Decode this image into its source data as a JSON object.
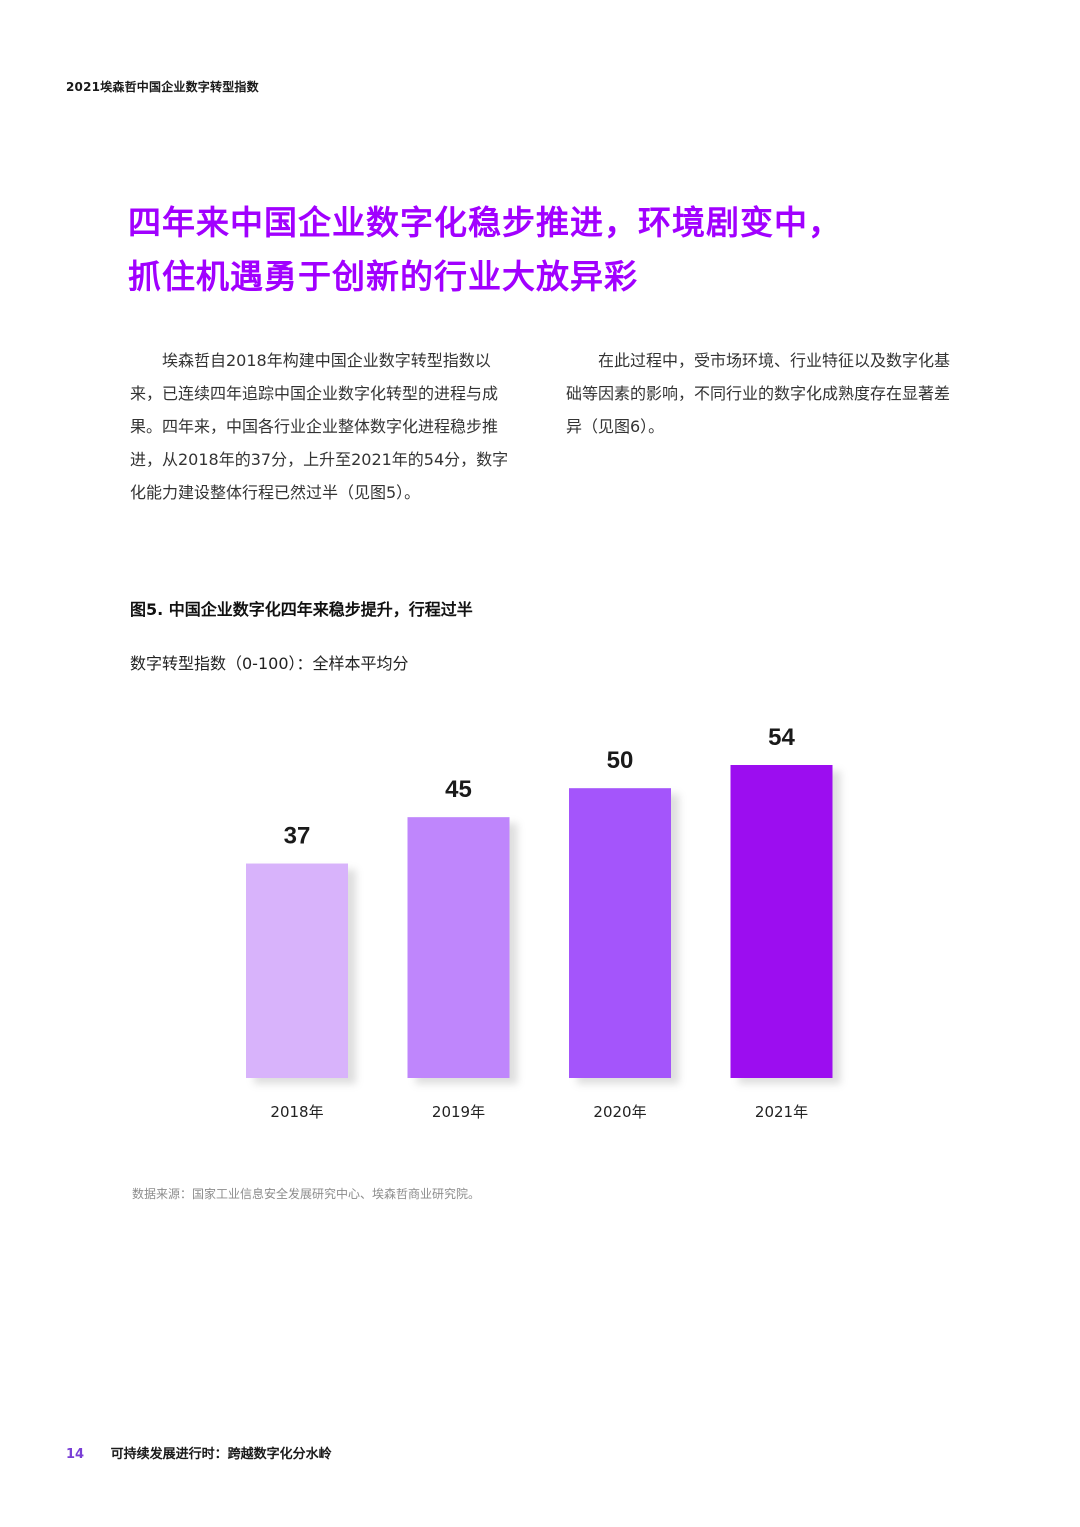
{
  "header": {
    "running_title": "2021埃森哲中国企业数字转型指数"
  },
  "headline": {
    "line1": "四年来中国企业数字化稳步推进，环境剧变中，",
    "line2": "抓住机遇勇于创新的行业大放异彩"
  },
  "body": {
    "left_paragraph": "埃森哲自2018年构建中国企业数字转型指数以来，已连续四年追踪中国企业数字化转型的进程与成果。四年来，中国各行业企业整体数字化进程稳步推进，从2018年的37分，上升至2021年的54分，数字化能力建设整体行程已然过半（见图5）。",
    "right_paragraph": "在此过程中，受市场环境、行业特征以及数字化基础等因素的影响，不同行业的数字化成熟度存在显著差异（见图6）。"
  },
  "figure": {
    "title": "图5. 中国企业数字化四年来稳步提升，行程过半",
    "subtitle": "数字转型指数（0-100）：全样本平均分",
    "source": "数据来源：国家工业信息安全发展研究中心、埃森哲商业研究院。"
  },
  "chart_data": {
    "type": "bar",
    "categories": [
      "2018年",
      "2019年",
      "2020年",
      "2021年"
    ],
    "values": [
      37,
      45,
      50,
      54
    ],
    "data_labels": [
      "37",
      "45",
      "50",
      "54"
    ],
    "title": "图5. 中国企业数字化四年来稳步提升，行程过半",
    "ylabel": "数字转型指数（0-100）：全样本平均分",
    "ylim": [
      0,
      54
    ],
    "grid": false,
    "legend": "none",
    "bar_colors": [
      "#d8b3fb",
      "#bf86fc",
      "#a454fb",
      "#9c0ff0"
    ]
  },
  "footer": {
    "page_number": "14",
    "publication_title": "可持续发展进行时：跨越数字化分水岭"
  },
  "colors": {
    "accent": "#a100ff",
    "footer_page_number": "#7a3fd6"
  }
}
